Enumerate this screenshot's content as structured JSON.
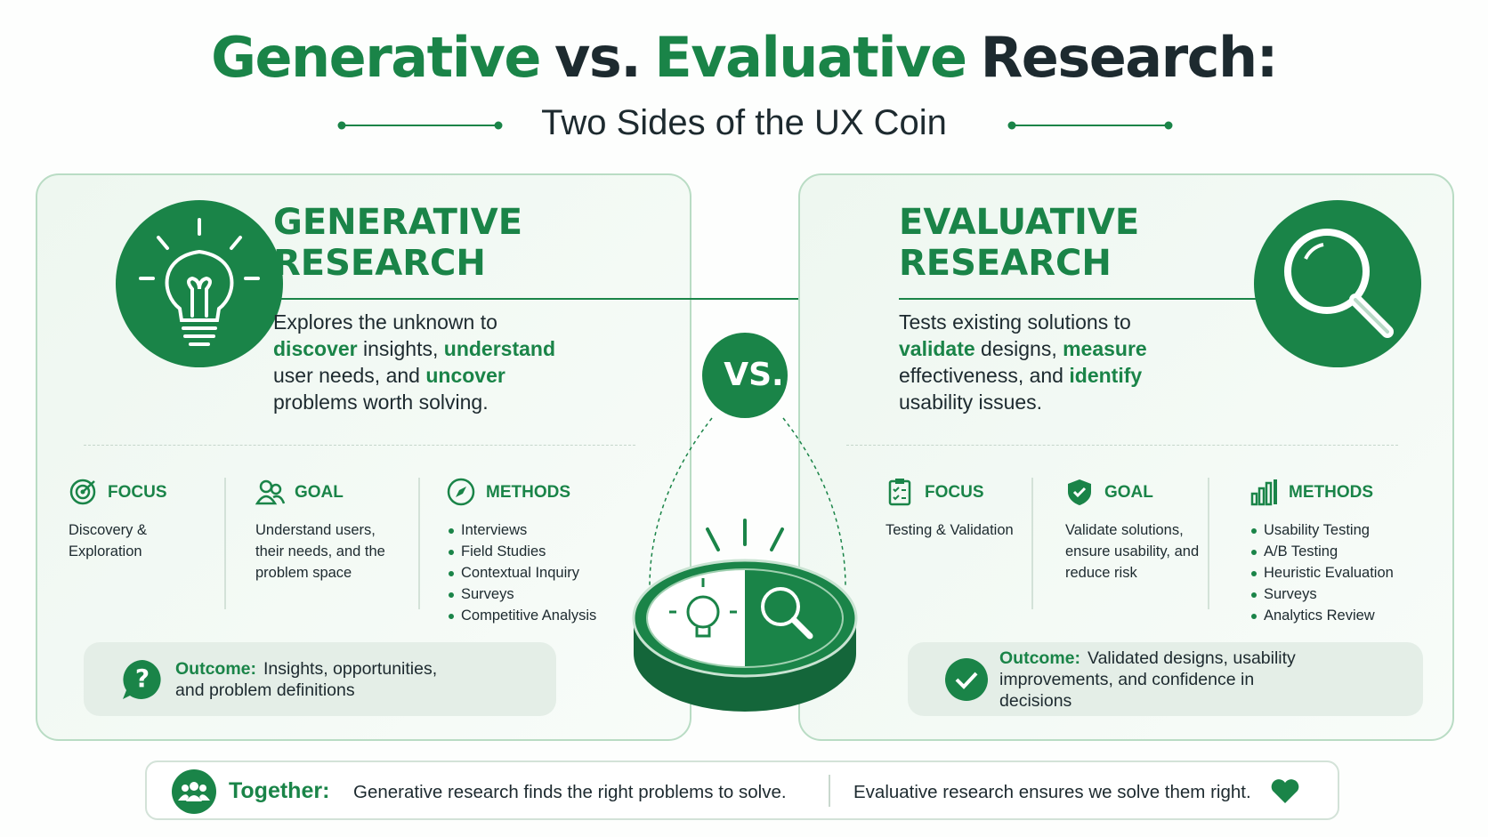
{
  "title": [
    {
      "text": "Generative",
      "accent": true
    },
    {
      "text": "vs.",
      "accent": false
    },
    {
      "text": "Evaluative",
      "accent": true
    },
    {
      "text": "Research:",
      "accent": false
    }
  ],
  "subtitle": "Two Sides of the UX Coin",
  "vs_label": "VS.",
  "panels": [
    {
      "heading": "GENERATIVE RESEARCH",
      "description": [
        {
          "text": "Explores the unknown to ",
          "strong": false
        },
        {
          "text": "discover",
          "strong": true
        },
        {
          "text": " insights, ",
          "strong": false
        },
        {
          "text": "understand",
          "strong": true
        },
        {
          "text": " user needs, and ",
          "strong": false
        },
        {
          "text": "uncover",
          "strong": true
        },
        {
          "text": " problems worth solving.",
          "strong": false
        }
      ],
      "columns": [
        {
          "label": "FOCUS",
          "text": "Discovery & Exploration"
        },
        {
          "label": "GOAL",
          "text": "Understand users, their needs, and the problem space"
        },
        {
          "label": "METHODS",
          "items": [
            "Interviews",
            "Field Studies",
            "Contextual Inquiry",
            "Surveys",
            "Competitive Analysis"
          ]
        }
      ],
      "outcome": {
        "label": "Outcome:",
        "text": "Insights, opportunities, and problem definitions"
      }
    },
    {
      "heading": "EVALUATIVE RESEARCH",
      "description": [
        {
          "text": "Tests existing solutions to ",
          "strong": false
        },
        {
          "text": "validate",
          "strong": true
        },
        {
          "text": " designs, ",
          "strong": false
        },
        {
          "text": "measure",
          "strong": true
        },
        {
          "text": " effectiveness, and ",
          "strong": false
        },
        {
          "text": "identify",
          "strong": true
        },
        {
          "text": " usability issues.",
          "strong": false
        }
      ],
      "columns": [
        {
          "label": "FOCUS",
          "text": "Testing & Validation"
        },
        {
          "label": "GOAL",
          "text": "Validate solutions, ensure usability, and reduce risk"
        },
        {
          "label": "METHODS",
          "items": [
            "Usability Testing",
            "A/B Testing",
            "Heuristic Evaluation",
            "Surveys",
            "Analytics Review"
          ]
        }
      ],
      "outcome": {
        "label": "Outcome:",
        "text": "Validated designs, usability improvements, and confidence in decisions"
      }
    }
  ],
  "footer": {
    "label": "Together:",
    "left": "Generative research finds the right problems to solve.",
    "right": "Evaluative research ensures we solve them right."
  }
}
